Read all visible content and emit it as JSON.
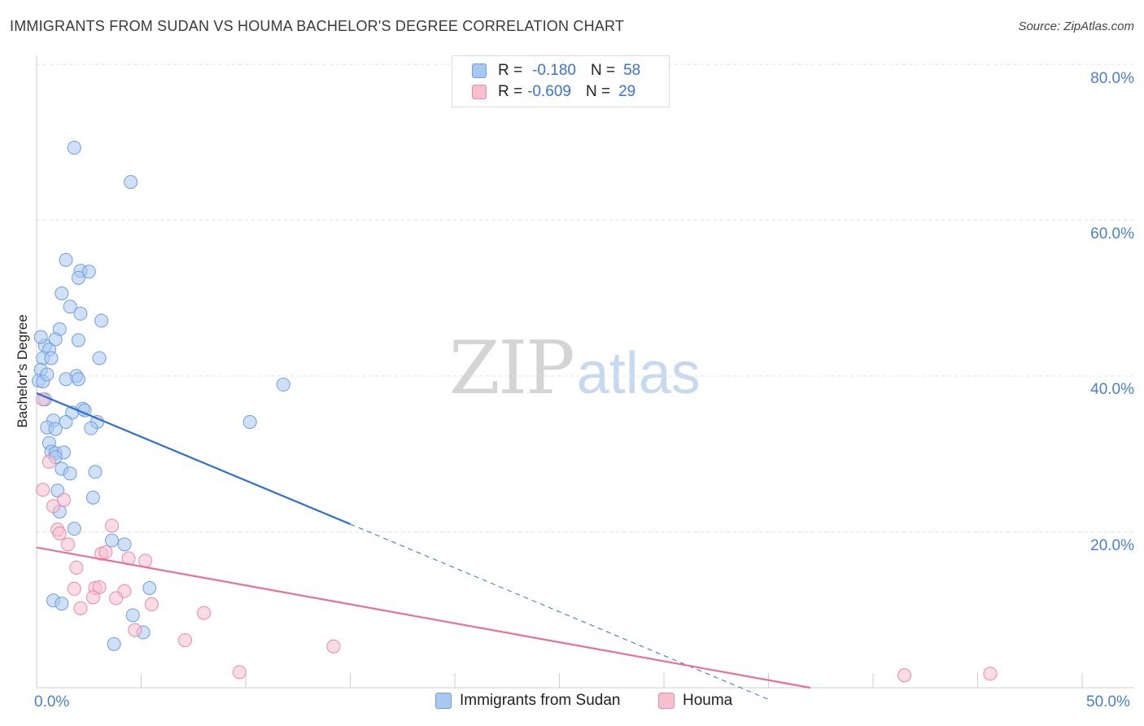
{
  "title": "IMMIGRANTS FROM SUDAN VS HOUMA BACHELOR'S DEGREE CORRELATION CHART",
  "source": "Source: ZipAtlas.com",
  "watermark": {
    "zip": "ZIP",
    "atlas": "atlas"
  },
  "stats": [
    {
      "r_label": "R =",
      "r_value": "-0.180",
      "n_label": "N =",
      "n_value": "58",
      "color": "#a9c8f0",
      "border": "#6e9ee0"
    },
    {
      "r_label": "R =",
      "r_value": "-0.609",
      "n_label": "N =",
      "n_value": "29",
      "color": "#f7c0d0",
      "border": "#e88aa8"
    }
  ],
  "legend": [
    {
      "label": "Immigrants from Sudan",
      "color": "#a9c8f0",
      "border": "#6e9ee0"
    },
    {
      "label": "Houma",
      "color": "#f7c0d0",
      "border": "#e88aa8"
    }
  ],
  "chart_data": {
    "type": "scatter",
    "title": "IMMIGRANTS FROM SUDAN VS HOUMA BACHELOR'S DEGREE CORRELATION CHART",
    "xlabel": "",
    "ylabel": "Bachelor's Degree",
    "xlim": [
      0,
      50
    ],
    "ylim": [
      0,
      83
    ],
    "x_tick_labels": [
      "0.0%",
      "50.0%"
    ],
    "y_ticks": [
      20,
      40,
      60,
      80
    ],
    "y_tick_labels": [
      "20.0%",
      "40.0%",
      "60.0%",
      "80.0%"
    ],
    "grid": true,
    "legend_position": "bottom",
    "series": [
      {
        "name": "Immigrants from Sudan",
        "color": "#6e9ee0",
        "fill": "#a9c8f0",
        "trend": {
          "x": [
            0,
            15
          ],
          "y": [
            37.8,
            21.0
          ],
          "dashed_to": [
            35,
            -1.5
          ],
          "color": "#2f6fd0"
        },
        "points": [
          [
            1.8,
            69.3
          ],
          [
            4.5,
            64.9
          ],
          [
            1.4,
            54.9
          ],
          [
            2.1,
            53.5
          ],
          [
            2.0,
            52.6
          ],
          [
            2.5,
            53.4
          ],
          [
            1.2,
            50.6
          ],
          [
            1.6,
            48.9
          ],
          [
            2.1,
            48.0
          ],
          [
            3.1,
            47.1
          ],
          [
            1.1,
            46.0
          ],
          [
            0.9,
            44.7
          ],
          [
            2.0,
            44.6
          ],
          [
            0.4,
            43.9
          ],
          [
            0.6,
            43.4
          ],
          [
            0.3,
            42.3
          ],
          [
            0.7,
            42.3
          ],
          [
            3.0,
            42.3
          ],
          [
            0.2,
            40.8
          ],
          [
            1.9,
            40.0
          ],
          [
            2.0,
            39.6
          ],
          [
            1.4,
            39.6
          ],
          [
            0.1,
            39.4
          ],
          [
            0.3,
            39.3
          ],
          [
            11.8,
            38.9
          ],
          [
            0.4,
            37.0
          ],
          [
            2.2,
            35.8
          ],
          [
            1.7,
            35.3
          ],
          [
            2.3,
            35.6
          ],
          [
            0.8,
            34.3
          ],
          [
            1.4,
            34.1
          ],
          [
            2.9,
            34.1
          ],
          [
            10.2,
            34.1
          ],
          [
            0.5,
            33.4
          ],
          [
            0.9,
            33.2
          ],
          [
            2.6,
            33.3
          ],
          [
            0.6,
            31.4
          ],
          [
            0.7,
            30.3
          ],
          [
            0.9,
            30.1
          ],
          [
            1.3,
            30.2
          ],
          [
            0.9,
            29.6
          ],
          [
            1.2,
            28.1
          ],
          [
            1.6,
            27.5
          ],
          [
            2.8,
            27.7
          ],
          [
            1.0,
            25.3
          ],
          [
            2.7,
            24.4
          ],
          [
            1.1,
            22.6
          ],
          [
            1.8,
            20.4
          ],
          [
            3.6,
            18.9
          ],
          [
            4.2,
            18.4
          ],
          [
            5.4,
            12.8
          ],
          [
            0.8,
            11.2
          ],
          [
            1.2,
            10.8
          ],
          [
            4.6,
            9.3
          ],
          [
            5.1,
            7.1
          ],
          [
            3.7,
            5.6
          ],
          [
            0.2,
            45.0
          ],
          [
            0.5,
            40.2
          ]
        ]
      },
      {
        "name": "Houma",
        "color": "#e88aa8",
        "fill": "#f7c0d0",
        "trend": {
          "x": [
            0,
            37
          ],
          "y": [
            18.0,
            0.0
          ],
          "color": "#e8709a"
        },
        "points": [
          [
            0.6,
            29.0
          ],
          [
            0.3,
            25.4
          ],
          [
            1.3,
            24.1
          ],
          [
            0.8,
            23.3
          ],
          [
            3.6,
            20.8
          ],
          [
            1.0,
            20.3
          ],
          [
            1.1,
            19.8
          ],
          [
            1.5,
            18.4
          ],
          [
            3.1,
            17.2
          ],
          [
            3.3,
            17.4
          ],
          [
            4.4,
            16.6
          ],
          [
            5.2,
            16.3
          ],
          [
            1.9,
            15.4
          ],
          [
            1.8,
            12.7
          ],
          [
            2.8,
            12.8
          ],
          [
            3.0,
            12.9
          ],
          [
            4.2,
            12.4
          ],
          [
            2.7,
            11.6
          ],
          [
            3.8,
            11.5
          ],
          [
            5.5,
            10.7
          ],
          [
            2.1,
            10.2
          ],
          [
            8.0,
            9.6
          ],
          [
            4.7,
            7.4
          ],
          [
            7.1,
            6.1
          ],
          [
            14.2,
            5.3
          ],
          [
            9.7,
            2.0
          ],
          [
            41.5,
            1.6
          ],
          [
            45.6,
            1.8
          ],
          [
            0.3,
            37.0
          ]
        ]
      }
    ]
  }
}
